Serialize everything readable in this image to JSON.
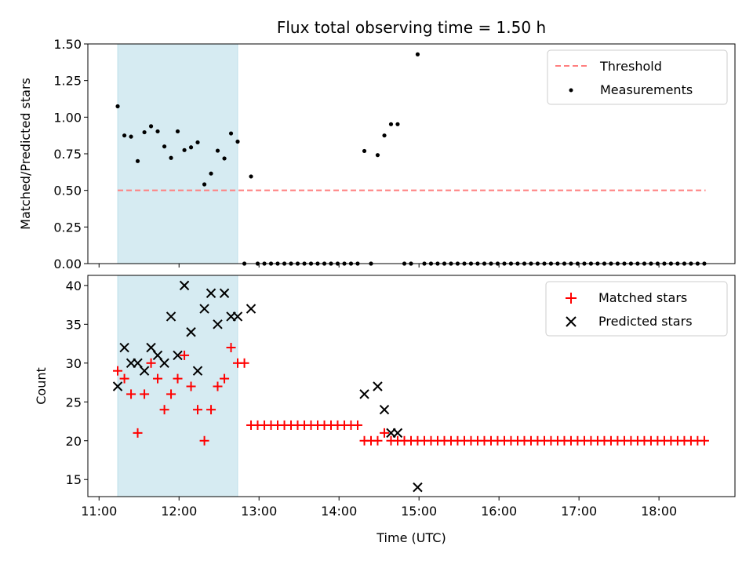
{
  "chart_data": {
    "type": "scatter",
    "title": "Flux total observing time = 1.50 h",
    "xlabel": "Time (UTC)",
    "x_ticks": [
      "11:00",
      "12:00",
      "13:00",
      "14:00",
      "15:00",
      "16:00",
      "17:00",
      "18:00"
    ],
    "x_range_hours": [
      10.86,
      18.95
    ],
    "shaded_interval": {
      "start": 11.233,
      "end": 12.733,
      "color": "#add8e6"
    },
    "top": {
      "ylabel": "Matched/Predicted stars",
      "ylim": [
        0,
        1.5
      ],
      "y_ticks": [
        "0.00",
        "0.25",
        "0.50",
        "0.75",
        "1.00",
        "1.25",
        "1.50"
      ],
      "threshold": {
        "name": "Threshold",
        "value": 0.5,
        "x_start": 11.233,
        "x_end": 18.583,
        "color": "#ff7f7f"
      },
      "measurements": {
        "name": "Measurements",
        "color": "#000000",
        "x": [
          11.233,
          11.317,
          11.4,
          11.483,
          11.567,
          11.65,
          11.733,
          11.817,
          11.9,
          11.983,
          12.067,
          12.15,
          12.233,
          12.317,
          12.4,
          12.483,
          12.567,
          12.65,
          12.733,
          12.817,
          12.9,
          12.983,
          13.067,
          13.15,
          13.233,
          13.317,
          13.4,
          13.483,
          13.567,
          13.65,
          13.733,
          13.817,
          13.9,
          13.983,
          14.067,
          14.15,
          14.233,
          14.317,
          14.4,
          14.483,
          14.567,
          14.65,
          14.733,
          14.817,
          14.9,
          14.983,
          15.067,
          15.15,
          15.233,
          15.317,
          15.4,
          15.483,
          15.567,
          15.65,
          15.733,
          15.817,
          15.9,
          15.983,
          16.067,
          16.15,
          16.233,
          16.317,
          16.4,
          16.483,
          16.567,
          16.65,
          16.733,
          16.817,
          16.9,
          16.983,
          17.067,
          17.15,
          17.233,
          17.317,
          17.4,
          17.483,
          17.567,
          17.65,
          17.733,
          17.817,
          17.9,
          17.983,
          18.067,
          18.15,
          18.233,
          18.317,
          18.4,
          18.483,
          18.567
        ],
        "y": [
          1.074,
          0.875,
          0.867,
          0.7,
          0.897,
          0.938,
          0.903,
          0.8,
          0.722,
          0.903,
          0.775,
          0.794,
          0.828,
          0.541,
          0.615,
          0.771,
          0.718,
          0.889,
          0.833,
          0.0,
          0.595,
          0.0,
          0.0,
          0.0,
          0.0,
          0.0,
          0.0,
          0.0,
          0.0,
          0.0,
          0.0,
          0.0,
          0.0,
          0.0,
          0.0,
          0.0,
          0.0,
          0.769,
          0.0,
          0.741,
          0.875,
          0.952,
          0.952,
          0.0,
          0.0,
          1.429,
          0.0,
          0.0,
          0.0,
          0.0,
          0.0,
          0.0,
          0.0,
          0.0,
          0.0,
          0.0,
          0.0,
          0.0,
          0.0,
          0.0,
          0.0,
          0.0,
          0.0,
          0.0,
          0.0,
          0.0,
          0.0,
          0.0,
          0.0,
          0.0,
          0.0,
          0.0,
          0.0,
          0.0,
          0.0,
          0.0,
          0.0,
          0.0,
          0.0,
          0.0,
          0.0,
          0.0,
          0.0,
          0.0,
          0.0,
          0.0,
          0.0,
          0.0,
          0.0
        ]
      },
      "legend": [
        "Threshold",
        "Measurements"
      ],
      "legend_position": "upper right"
    },
    "bottom": {
      "ylabel": "Count",
      "ylim": [
        12.8,
        41.3
      ],
      "y_ticks": [
        "15",
        "20",
        "25",
        "30",
        "35",
        "40"
      ],
      "matched": {
        "name": "Matched stars",
        "marker": "+",
        "color": "#ff0000",
        "x": [
          11.233,
          11.317,
          11.4,
          11.483,
          11.567,
          11.65,
          11.733,
          11.817,
          11.9,
          11.983,
          12.067,
          12.15,
          12.233,
          12.317,
          12.4,
          12.483,
          12.567,
          12.65,
          12.733,
          12.817,
          12.9,
          12.983,
          13.067,
          13.15,
          13.233,
          13.317,
          13.4,
          13.483,
          13.567,
          13.65,
          13.733,
          13.817,
          13.9,
          13.983,
          14.067,
          14.15,
          14.233,
          14.317,
          14.4,
          14.483,
          14.567,
          14.65,
          14.733,
          14.817,
          14.9,
          14.983,
          15.067,
          15.15,
          15.233,
          15.317,
          15.4,
          15.483,
          15.567,
          15.65,
          15.733,
          15.817,
          15.9,
          15.983,
          16.067,
          16.15,
          16.233,
          16.317,
          16.4,
          16.483,
          16.567,
          16.65,
          16.733,
          16.817,
          16.9,
          16.983,
          17.067,
          17.15,
          17.233,
          17.317,
          17.4,
          17.483,
          17.567,
          17.65,
          17.733,
          17.817,
          17.9,
          17.983,
          18.067,
          18.15,
          18.233,
          18.317,
          18.4,
          18.483,
          18.567
        ],
        "y": [
          29,
          28,
          26,
          21,
          26,
          30,
          28,
          24,
          26,
          28,
          31,
          27,
          24,
          20,
          24,
          27,
          28,
          32,
          30,
          30,
          22,
          22,
          22,
          22,
          22,
          22,
          22,
          22,
          22,
          22,
          22,
          22,
          22,
          22,
          22,
          22,
          22,
          20,
          20,
          20,
          21,
          20,
          20,
          20,
          20,
          20,
          20,
          20,
          20,
          20,
          20,
          20,
          20,
          20,
          20,
          20,
          20,
          20,
          20,
          20,
          20,
          20,
          20,
          20,
          20,
          20,
          20,
          20,
          20,
          20,
          20,
          20,
          20,
          20,
          20,
          20,
          20,
          20,
          20,
          20,
          20,
          20,
          20,
          20,
          20,
          20,
          20,
          20,
          20
        ]
      },
      "predicted": {
        "name": "Predicted stars",
        "marker": "x",
        "color": "#000000",
        "x": [
          11.233,
          11.317,
          11.4,
          11.483,
          11.567,
          11.65,
          11.733,
          11.817,
          11.9,
          11.983,
          12.067,
          12.15,
          12.233,
          12.317,
          12.4,
          12.483,
          12.567,
          12.65,
          12.733,
          12.9,
          14.317,
          14.483,
          14.567,
          14.65,
          14.733,
          14.983
        ],
        "y": [
          27,
          32,
          30,
          30,
          29,
          32,
          31,
          30,
          36,
          31,
          40,
          34,
          29,
          37,
          39,
          35,
          39,
          36,
          36,
          37,
          26,
          27,
          24,
          21,
          21,
          14
        ]
      },
      "legend": [
        "Matched stars",
        "Predicted stars"
      ],
      "legend_position": "upper right"
    }
  }
}
